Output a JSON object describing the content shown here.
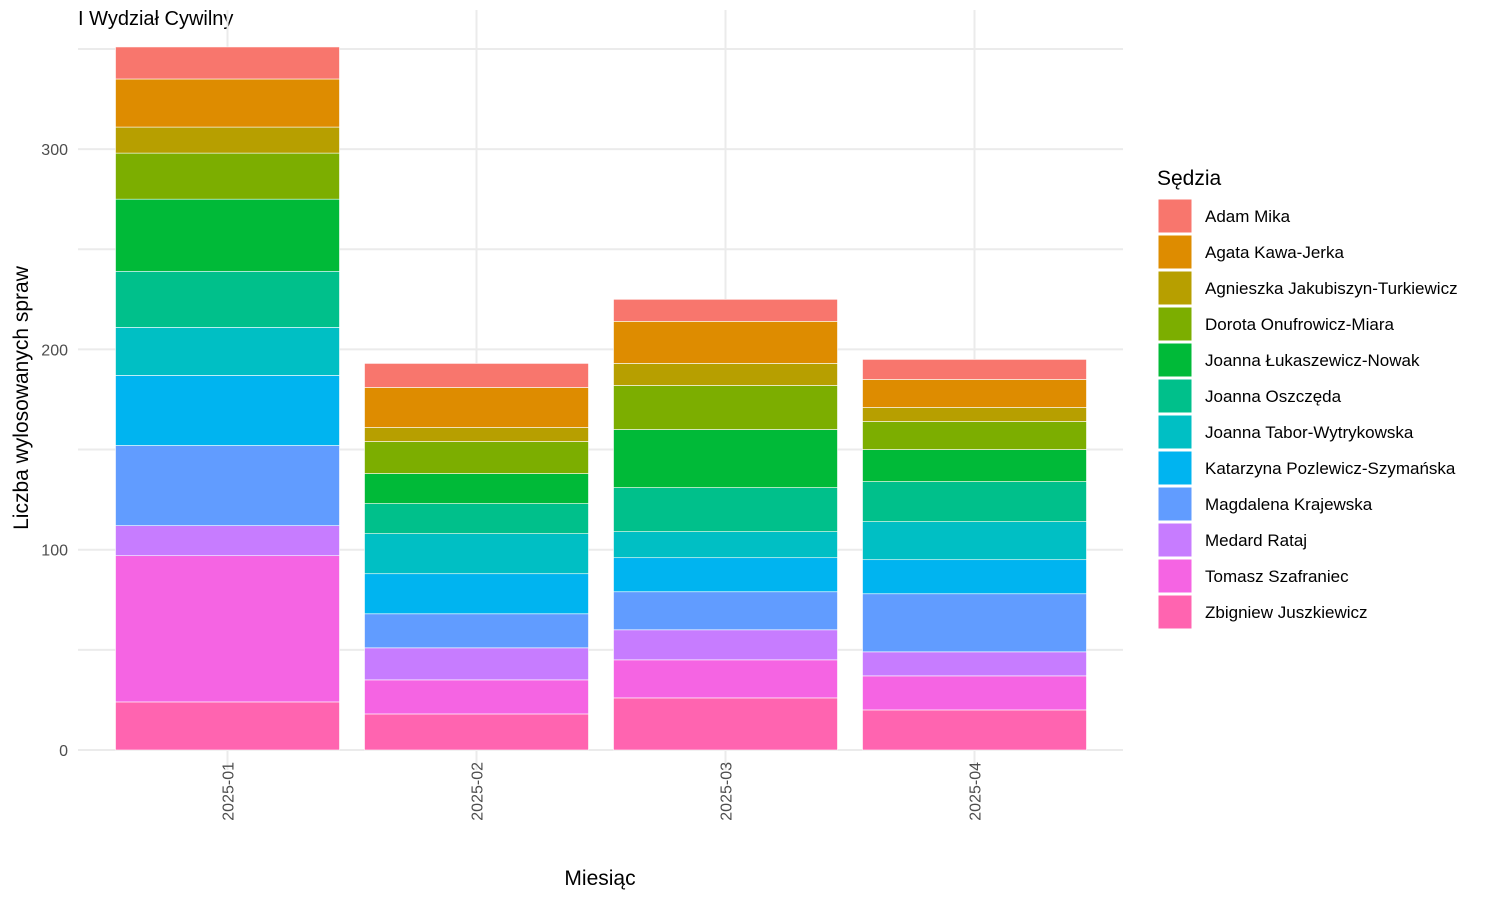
{
  "chart_data": {
    "type": "bar",
    "stacked": true,
    "title": "I Wydział Cywilny",
    "xlabel": "Miesiąc",
    "ylabel": "Liczba wylosowanych spraw",
    "ylim": [
      0,
      360
    ],
    "yticks": [
      0,
      100,
      200,
      300
    ],
    "grid": true,
    "legend_title": "Sędzia",
    "legend_position": "right",
    "categories": [
      "2025-01",
      "2025-02",
      "2025-03",
      "2025-04"
    ],
    "series": [
      {
        "name": "Adam Mika",
        "color": "#F8766D",
        "values": [
          16,
          12,
          11,
          10
        ]
      },
      {
        "name": "Agata Kawa-Jerka",
        "color": "#DE8C00",
        "values": [
          24,
          20,
          21,
          14
        ]
      },
      {
        "name": "Agnieszka Jakubiszyn-Turkiewicz",
        "color": "#B79F00",
        "values": [
          13,
          7,
          11,
          7
        ]
      },
      {
        "name": "Dorota Onufrowicz-Miara",
        "color": "#7CAE00",
        "values": [
          23,
          16,
          22,
          14
        ]
      },
      {
        "name": "Joanna Łukaszewicz-Nowak",
        "color": "#00BA38",
        "values": [
          36,
          15,
          29,
          16
        ]
      },
      {
        "name": "Joanna Oszczęda",
        "color": "#00C08B",
        "values": [
          28,
          15,
          22,
          20
        ]
      },
      {
        "name": "Joanna Tabor-Wytrykowska",
        "color": "#00BFC4",
        "values": [
          24,
          20,
          13,
          19
        ]
      },
      {
        "name": "Katarzyna Pozlewicz-Szymańska",
        "color": "#00B4F0",
        "values": [
          35,
          20,
          17,
          17
        ]
      },
      {
        "name": "Magdalena Krajewska",
        "color": "#619CFF",
        "values": [
          40,
          17,
          19,
          29
        ]
      },
      {
        "name": "Medard Rataj",
        "color": "#C77CFF",
        "values": [
          15,
          16,
          15,
          12
        ]
      },
      {
        "name": "Tomasz Szafraniec",
        "color": "#F564E3",
        "values": [
          73,
          17,
          19,
          17
        ]
      },
      {
        "name": "Zbigniew Juszkiewicz",
        "color": "#FF64B0",
        "values": [
          24,
          18,
          26,
          20
        ]
      }
    ]
  }
}
